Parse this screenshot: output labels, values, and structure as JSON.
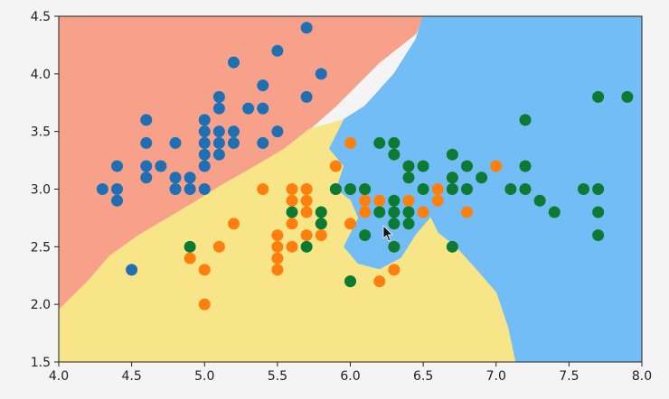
{
  "chart_data": {
    "type": "scatter",
    "title": "",
    "xlabel": "",
    "ylabel": "",
    "xlim": [
      4.0,
      8.0
    ],
    "ylim": [
      1.5,
      4.5
    ],
    "x_ticks": [
      "4.0",
      "4.5",
      "5.0",
      "5.5",
      "6.0",
      "6.5",
      "7.0",
      "7.5",
      "8.0"
    ],
    "y_ticks": [
      "1.5",
      "2.0",
      "2.5",
      "3.0",
      "3.5",
      "4.0",
      "4.5"
    ],
    "x_tick_values": [
      4.0,
      4.5,
      5.0,
      5.5,
      6.0,
      6.5,
      7.0,
      7.5,
      8.0
    ],
    "y_tick_values": [
      1.5,
      2.0,
      2.5,
      3.0,
      3.5,
      4.0,
      4.5
    ],
    "grid": false,
    "legend": "none",
    "decision_regions": [
      {
        "class": 0,
        "color": "#f7a18b",
        "polygon": [
          [
            4.0,
            4.5
          ],
          [
            6.5,
            4.5
          ],
          [
            6.45,
            4.35
          ],
          [
            6.2,
            4.1
          ],
          [
            5.9,
            3.72
          ],
          [
            5.72,
            3.52
          ],
          [
            5.55,
            3.35
          ],
          [
            5.35,
            3.2
          ],
          [
            5.1,
            3.02
          ],
          [
            4.95,
            2.9
          ],
          [
            4.75,
            2.75
          ],
          [
            4.55,
            2.6
          ],
          [
            4.35,
            2.42
          ],
          [
            4.2,
            2.2
          ],
          [
            4.0,
            1.95
          ]
        ]
      },
      {
        "class": 2,
        "color": "#72bdf6",
        "polygon": [
          [
            6.5,
            4.5
          ],
          [
            8.0,
            4.5
          ],
          [
            8.0,
            1.5
          ],
          [
            7.13,
            1.5
          ],
          [
            7.08,
            1.8
          ],
          [
            7.0,
            2.1
          ],
          [
            6.85,
            2.32
          ],
          [
            6.72,
            2.5
          ],
          [
            6.6,
            2.62
          ],
          [
            6.55,
            2.75
          ],
          [
            6.45,
            2.6
          ],
          [
            6.35,
            2.4
          ],
          [
            6.2,
            2.3
          ],
          [
            6.05,
            2.35
          ],
          [
            5.95,
            2.5
          ],
          [
            6.05,
            2.75
          ],
          [
            6.0,
            2.9
          ],
          [
            5.9,
            3.0
          ],
          [
            5.95,
            3.2
          ],
          [
            5.85,
            3.35
          ],
          [
            5.95,
            3.6
          ],
          [
            6.1,
            3.72
          ],
          [
            6.3,
            4.0
          ],
          [
            6.45,
            4.3
          ]
        ]
      },
      {
        "class": 1,
        "color": "#f8e588",
        "polygon": [
          [
            4.0,
            1.5
          ],
          [
            7.13,
            1.5
          ],
          [
            7.08,
            1.8
          ],
          [
            7.0,
            2.1
          ],
          [
            6.85,
            2.32
          ],
          [
            6.72,
            2.5
          ],
          [
            6.6,
            2.62
          ],
          [
            6.55,
            2.75
          ],
          [
            6.45,
            2.6
          ],
          [
            6.35,
            2.4
          ],
          [
            6.2,
            2.3
          ],
          [
            6.05,
            2.35
          ],
          [
            5.95,
            2.5
          ],
          [
            6.05,
            2.75
          ],
          [
            6.0,
            2.9
          ],
          [
            5.9,
            3.0
          ],
          [
            5.95,
            3.2
          ],
          [
            5.85,
            3.35
          ],
          [
            5.95,
            3.6
          ],
          [
            5.72,
            3.52
          ],
          [
            5.55,
            3.35
          ],
          [
            5.35,
            3.2
          ],
          [
            5.1,
            3.02
          ],
          [
            4.95,
            2.9
          ],
          [
            4.75,
            2.75
          ],
          [
            4.55,
            2.6
          ],
          [
            4.35,
            2.42
          ],
          [
            4.2,
            2.2
          ],
          [
            4.0,
            1.95
          ]
        ]
      }
    ],
    "series": [
      {
        "color": "#1f6fb2",
        "points": [
          [
            4.3,
            3.0
          ],
          [
            4.4,
            2.9
          ],
          [
            4.4,
            3.0
          ],
          [
            4.4,
            3.2
          ],
          [
            4.5,
            2.3
          ],
          [
            4.6,
            3.1
          ],
          [
            4.6,
            3.2
          ],
          [
            4.6,
            3.4
          ],
          [
            4.6,
            3.6
          ],
          [
            4.7,
            3.2
          ],
          [
            4.8,
            3.0
          ],
          [
            4.8,
            3.1
          ],
          [
            4.8,
            3.4
          ],
          [
            4.9,
            3.0
          ],
          [
            4.9,
            3.1
          ],
          [
            5.0,
            3.0
          ],
          [
            5.0,
            3.2
          ],
          [
            5.0,
            3.3
          ],
          [
            5.0,
            3.4
          ],
          [
            5.0,
            3.5
          ],
          [
            5.0,
            3.6
          ],
          [
            5.1,
            3.3
          ],
          [
            5.1,
            3.4
          ],
          [
            5.1,
            3.5
          ],
          [
            5.1,
            3.7
          ],
          [
            5.1,
            3.8
          ],
          [
            5.2,
            3.4
          ],
          [
            5.2,
            3.5
          ],
          [
            5.2,
            4.1
          ],
          [
            5.3,
            3.7
          ],
          [
            5.4,
            3.4
          ],
          [
            5.4,
            3.7
          ],
          [
            5.4,
            3.9
          ],
          [
            5.5,
            3.5
          ],
          [
            5.5,
            4.2
          ],
          [
            5.7,
            3.8
          ],
          [
            5.7,
            4.4
          ],
          [
            5.8,
            4.0
          ]
        ]
      },
      {
        "color": "#ff7f0e",
        "points": [
          [
            4.9,
            2.4
          ],
          [
            5.0,
            2.0
          ],
          [
            5.0,
            2.3
          ],
          [
            5.1,
            2.5
          ],
          [
            5.2,
            2.7
          ],
          [
            5.4,
            3.0
          ],
          [
            5.5,
            2.3
          ],
          [
            5.5,
            2.4
          ],
          [
            5.5,
            2.5
          ],
          [
            5.5,
            2.6
          ],
          [
            5.6,
            2.5
          ],
          [
            5.6,
            2.7
          ],
          [
            5.6,
            2.9
          ],
          [
            5.6,
            3.0
          ],
          [
            5.7,
            2.6
          ],
          [
            5.7,
            2.8
          ],
          [
            5.7,
            2.9
          ],
          [
            5.7,
            3.0
          ],
          [
            5.8,
            2.6
          ],
          [
            5.8,
            2.7
          ],
          [
            5.9,
            3.0
          ],
          [
            5.9,
            3.2
          ],
          [
            6.0,
            2.2
          ],
          [
            6.0,
            2.7
          ],
          [
            6.0,
            3.4
          ],
          [
            6.1,
            2.8
          ],
          [
            6.1,
            2.9
          ],
          [
            6.1,
            3.0
          ],
          [
            6.2,
            2.2
          ],
          [
            6.2,
            2.9
          ],
          [
            6.3,
            2.3
          ],
          [
            6.3,
            2.5
          ],
          [
            6.4,
            2.9
          ],
          [
            6.5,
            2.8
          ],
          [
            6.6,
            2.9
          ],
          [
            6.6,
            3.0
          ],
          [
            6.7,
            3.1
          ],
          [
            6.8,
            2.8
          ],
          [
            7.0,
            3.2
          ]
        ]
      },
      {
        "color": "#0b7a32",
        "points": [
          [
            4.9,
            2.5
          ],
          [
            5.6,
            2.8
          ],
          [
            5.7,
            2.5
          ],
          [
            5.8,
            2.7
          ],
          [
            5.8,
            2.8
          ],
          [
            5.9,
            3.0
          ],
          [
            6.0,
            2.2
          ],
          [
            6.0,
            3.0
          ],
          [
            6.1,
            2.6
          ],
          [
            6.1,
            3.0
          ],
          [
            6.2,
            2.8
          ],
          [
            6.2,
            3.4
          ],
          [
            6.3,
            2.5
          ],
          [
            6.3,
            2.7
          ],
          [
            6.3,
            2.8
          ],
          [
            6.3,
            2.9
          ],
          [
            6.3,
            3.3
          ],
          [
            6.3,
            3.4
          ],
          [
            6.4,
            2.7
          ],
          [
            6.4,
            2.8
          ],
          [
            6.4,
            3.1
          ],
          [
            6.4,
            3.2
          ],
          [
            6.5,
            3.0
          ],
          [
            6.5,
            3.2
          ],
          [
            6.7,
            2.5
          ],
          [
            6.7,
            3.0
          ],
          [
            6.7,
            3.1
          ],
          [
            6.7,
            3.3
          ],
          [
            6.8,
            3.0
          ],
          [
            6.8,
            3.2
          ],
          [
            6.9,
            3.1
          ],
          [
            7.1,
            3.0
          ],
          [
            7.2,
            3.0
          ],
          [
            7.2,
            3.2
          ],
          [
            7.2,
            3.6
          ],
          [
            7.3,
            2.9
          ],
          [
            7.4,
            2.8
          ],
          [
            7.6,
            3.0
          ],
          [
            7.7,
            2.6
          ],
          [
            7.7,
            2.8
          ],
          [
            7.7,
            3.0
          ],
          [
            7.7,
            3.8
          ],
          [
            7.9,
            3.8
          ]
        ]
      }
    ]
  },
  "colors": {
    "frame": "#222222",
    "background": "#f4f4f4"
  }
}
